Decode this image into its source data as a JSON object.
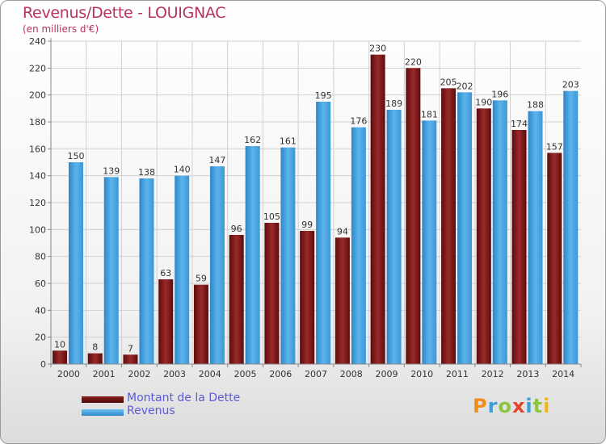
{
  "header": {
    "title": "Revenus/Dette - LOUIGNAC",
    "subtitle": "(en milliers d'€)"
  },
  "chart_data": {
    "type": "bar",
    "categories": [
      "2000",
      "2001",
      "2002",
      "2003",
      "2004",
      "2005",
      "2006",
      "2007",
      "2008",
      "2009",
      "2010",
      "2011",
      "2012",
      "2013",
      "2014"
    ],
    "series": [
      {
        "name": "Montant de la Dette",
        "color": "#7a1515",
        "values": [
          10,
          8,
          7,
          63,
          59,
          96,
          105,
          99,
          94,
          230,
          220,
          205,
          190,
          174,
          157
        ]
      },
      {
        "name": "Revenus",
        "color": "#4aa3e0",
        "values": [
          150,
          139,
          138,
          140,
          147,
          162,
          161,
          195,
          176,
          189,
          181,
          202,
          196,
          188,
          203
        ]
      }
    ],
    "yticks": [
      0,
      20,
      40,
      60,
      80,
      100,
      120,
      140,
      160,
      180,
      200,
      220,
      240
    ],
    "ylim": [
      0,
      240
    ],
    "grid": true,
    "legend_position": "bottom-left"
  },
  "legend": {
    "items": [
      "Montant de la Dette",
      "Revenus"
    ]
  },
  "logo": {
    "letters": [
      "P",
      "r",
      "o",
      "x",
      "i",
      "t",
      "i"
    ],
    "colors": [
      "#f28c1a",
      "#3aa0d8",
      "#8cc63f",
      "#e8412c",
      "#3aa0d8",
      "#8cc63f",
      "#f2b61a"
    ]
  }
}
